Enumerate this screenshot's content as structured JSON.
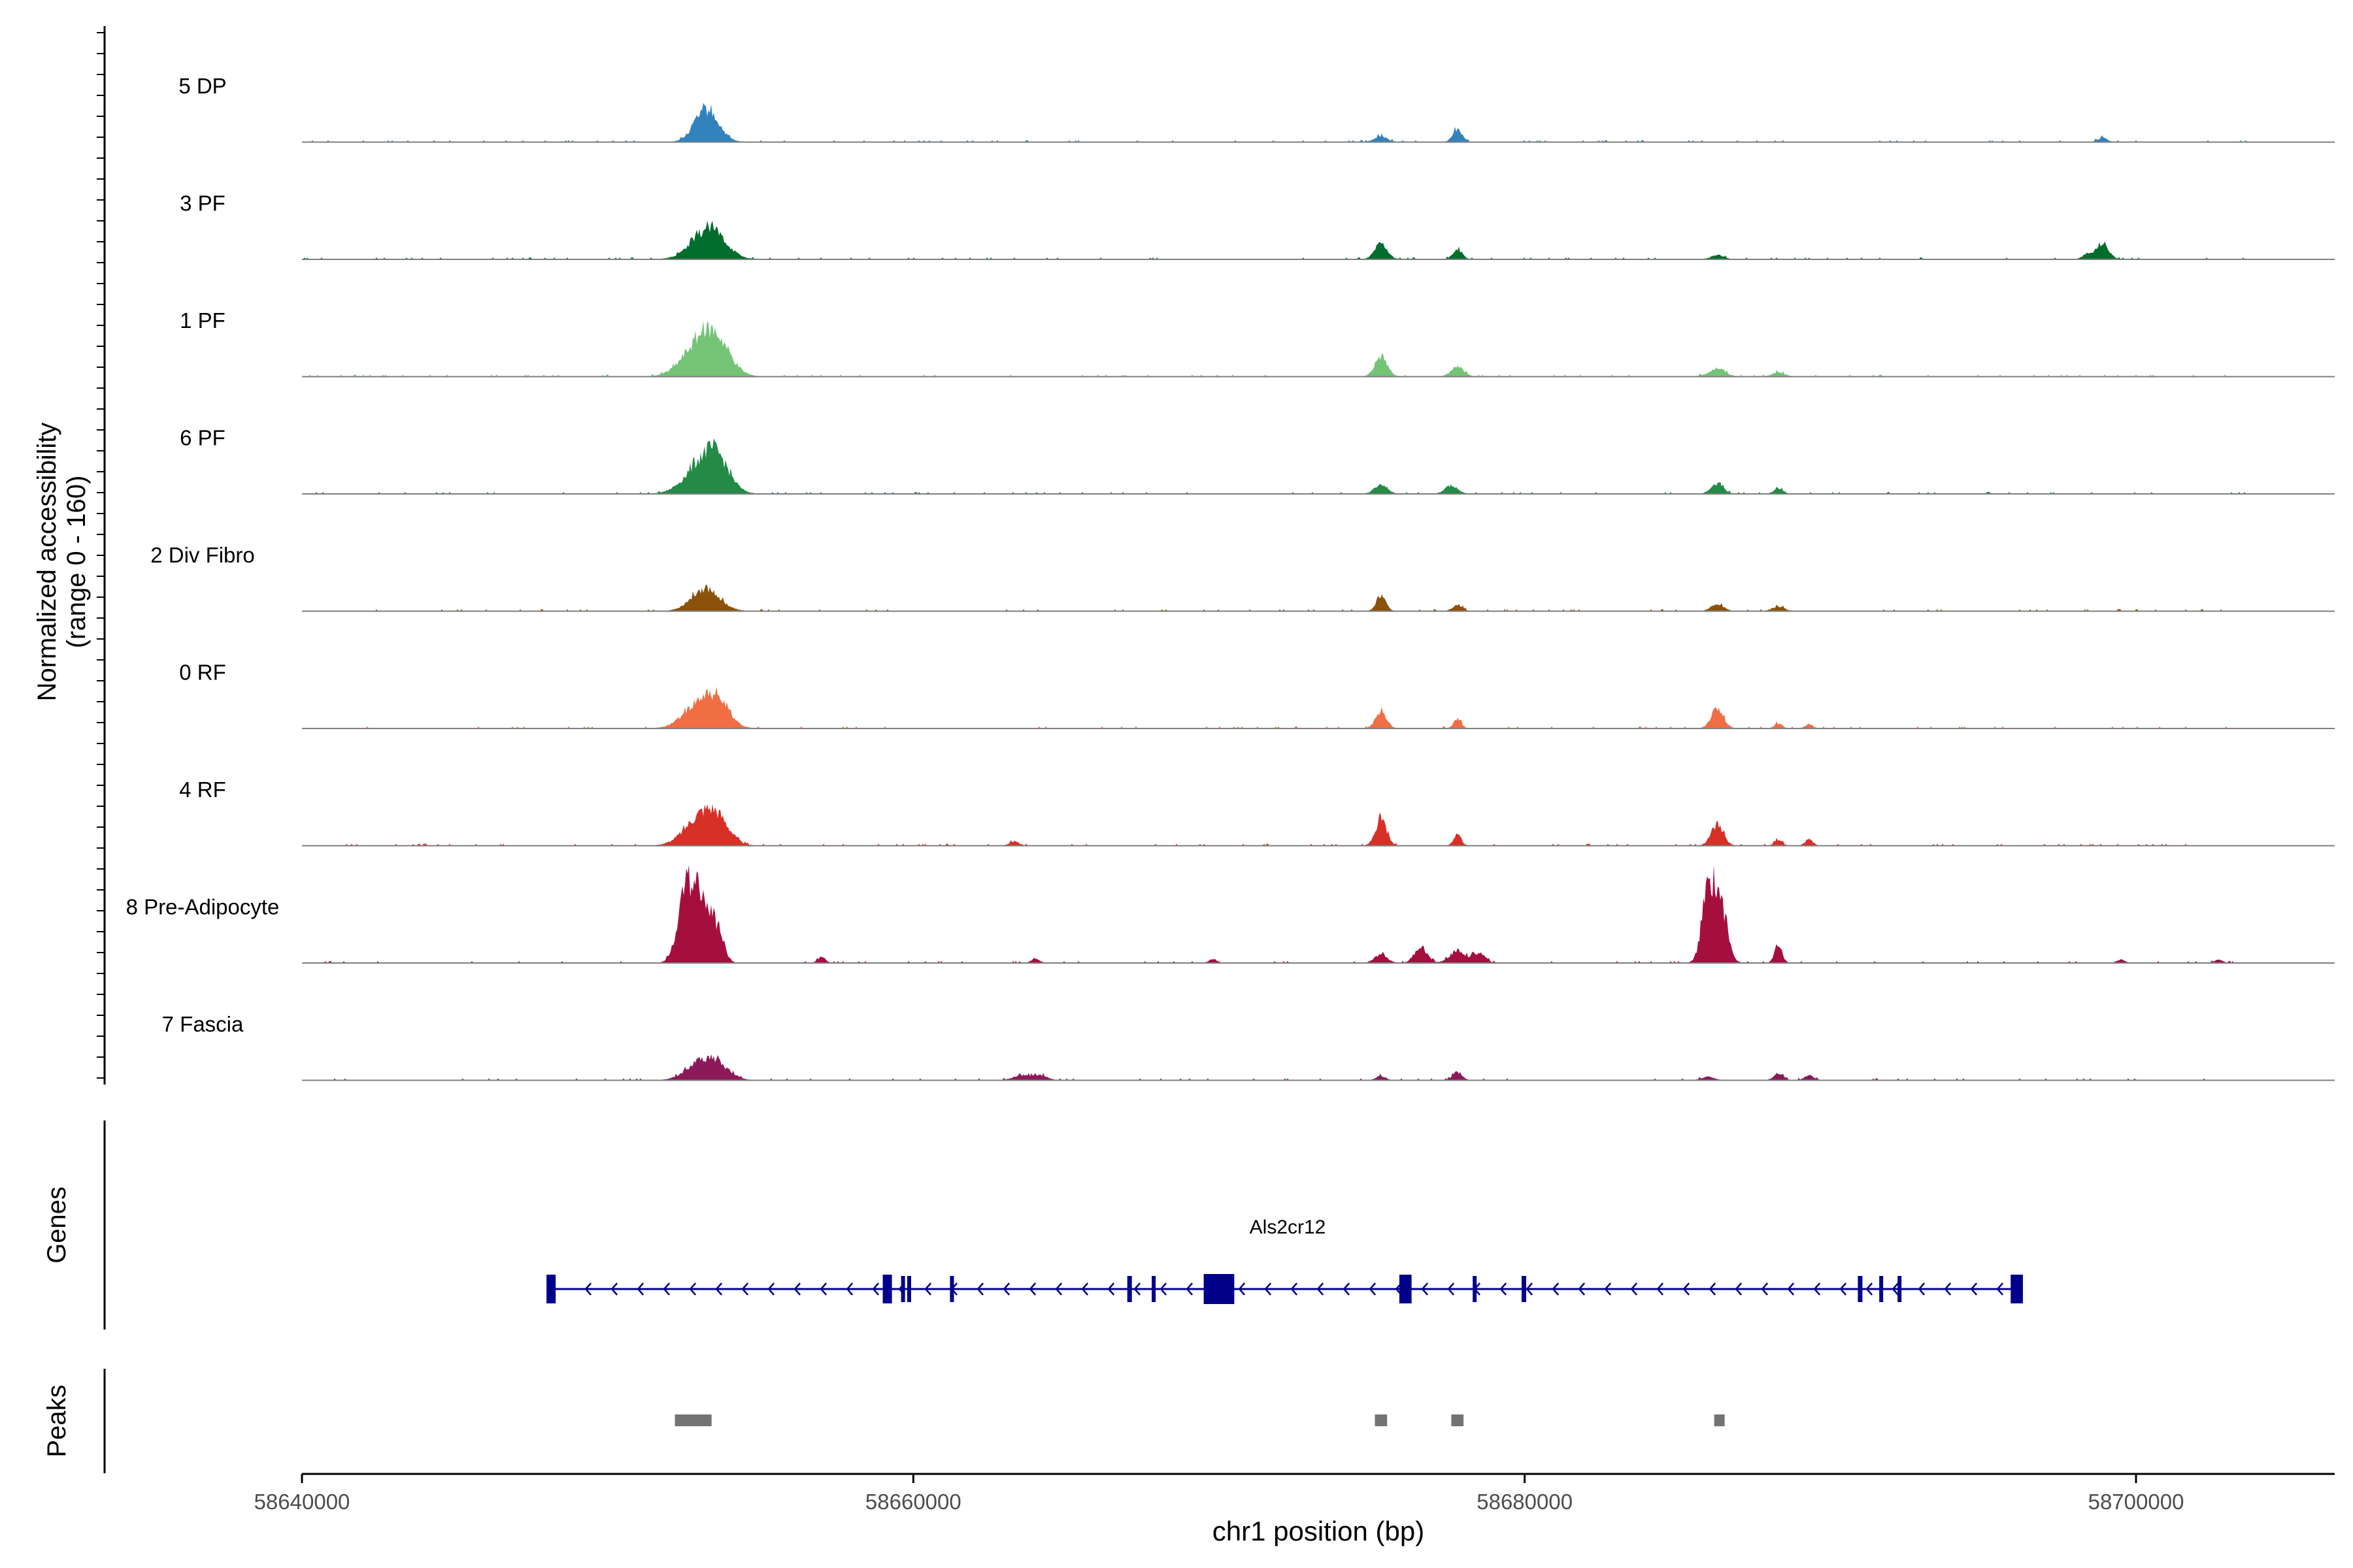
{
  "chart_data": {
    "type": "area",
    "region": {
      "chromosome": "chr1",
      "start": 58640000,
      "end": 58706500
    },
    "y_axis_label": [
      "Normalized accessibility",
      "(range 0 - 160)"
    ],
    "y_range": [
      0,
      160
    ],
    "x_axis": {
      "label": "chr1 position (bp)",
      "ticks": [
        58640000,
        58660000,
        58680000,
        58700000
      ],
      "tick_labels": [
        "58640000",
        "58660000",
        "58680000",
        "58700000"
      ]
    },
    "tracks": [
      {
        "name": "5 DP",
        "color": "#3182bd",
        "peaks": [
          [
            58653100,
            0.24,
            350
          ],
          [
            58653400,
            0.2,
            350
          ],
          [
            58675300,
            0.07,
            200
          ],
          [
            58677800,
            0.16,
            150
          ],
          [
            58698900,
            0.05,
            150
          ]
        ]
      },
      {
        "name": "3 PF",
        "color": "#006d2c",
        "peaks": [
          [
            58653100,
            0.2,
            500
          ],
          [
            58653500,
            0.22,
            450
          ],
          [
            58675300,
            0.2,
            200
          ],
          [
            58677800,
            0.12,
            150
          ],
          [
            58686300,
            0.05,
            200
          ],
          [
            58698900,
            0.2,
            200
          ],
          [
            58698400,
            0.06,
            150
          ]
        ]
      },
      {
        "name": "1 PF",
        "color": "#74c476",
        "peaks": [
          [
            58653000,
            0.38,
            550
          ],
          [
            58653600,
            0.32,
            450
          ],
          [
            58675300,
            0.25,
            200
          ],
          [
            58677800,
            0.12,
            200
          ],
          [
            58686300,
            0.1,
            250
          ],
          [
            58688300,
            0.05,
            200
          ]
        ]
      },
      {
        "name": "6 PF",
        "color": "#238b45",
        "peaks": [
          [
            58653100,
            0.36,
            550
          ],
          [
            58653600,
            0.28,
            400
          ],
          [
            58675300,
            0.12,
            200
          ],
          [
            58677600,
            0.1,
            200
          ],
          [
            58686300,
            0.12,
            200
          ],
          [
            58688300,
            0.06,
            150
          ]
        ]
      },
      {
        "name": "2 Div Fibro",
        "color": "#8c510a",
        "peaks": [
          [
            58653200,
            0.28,
            450
          ],
          [
            58675300,
            0.2,
            150
          ],
          [
            58677800,
            0.08,
            150
          ],
          [
            58686300,
            0.08,
            200
          ],
          [
            58688300,
            0.05,
            200
          ]
        ]
      },
      {
        "name": "0 RF",
        "color": "#f16d43",
        "peaks": [
          [
            58653000,
            0.3,
            500
          ],
          [
            58653600,
            0.25,
            400
          ],
          [
            58675300,
            0.2,
            180
          ],
          [
            58677800,
            0.12,
            120
          ],
          [
            58686300,
            0.24,
            200
          ],
          [
            58688300,
            0.06,
            120
          ],
          [
            58689300,
            0.05,
            120
          ]
        ]
      },
      {
        "name": "4 RF",
        "color": "#d73027",
        "peaks": [
          [
            58653000,
            0.32,
            500
          ],
          [
            58653600,
            0.26,
            400
          ],
          [
            58675300,
            0.32,
            180
          ],
          [
            58677800,
            0.15,
            120
          ],
          [
            58686300,
            0.26,
            200
          ],
          [
            58688300,
            0.07,
            120
          ],
          [
            58689300,
            0.08,
            120
          ],
          [
            58663300,
            0.05,
            150
          ]
        ]
      },
      {
        "name": "8 Pre-Adipocyte",
        "color": "#a50f3e",
        "peaks": [
          [
            58652500,
            0.7,
            250
          ],
          [
            58653000,
            0.9,
            280
          ],
          [
            58653600,
            0.4,
            200
          ],
          [
            58675300,
            0.1,
            200
          ],
          [
            58676600,
            0.2,
            200
          ],
          [
            58677800,
            0.15,
            250
          ],
          [
            58678500,
            0.12,
            200
          ],
          [
            58686000,
            0.85,
            200
          ],
          [
            58686400,
            0.72,
            220
          ],
          [
            58688300,
            0.22,
            120
          ],
          [
            58657000,
            0.07,
            120
          ],
          [
            58664000,
            0.06,
            120
          ],
          [
            58669800,
            0.05,
            120
          ],
          [
            58699500,
            0.04,
            120
          ],
          [
            58702700,
            0.04,
            120
          ]
        ]
      },
      {
        "name": "7 Fascia",
        "color": "#8c1a5b",
        "peaks": [
          [
            58653000,
            0.2,
            450
          ],
          [
            58653600,
            0.16,
            400
          ],
          [
            58663600,
            0.06,
            300
          ],
          [
            58664200,
            0.05,
            200
          ],
          [
            58675300,
            0.05,
            150
          ],
          [
            58677800,
            0.1,
            150
          ],
          [
            58688300,
            0.08,
            150
          ],
          [
            58689300,
            0.06,
            150
          ],
          [
            58686000,
            0.04,
            200
          ]
        ]
      }
    ],
    "genes_label": "Genes",
    "gene": {
      "name": "Als2cr12",
      "start": 58648000,
      "end": 58696300,
      "strand": "-",
      "exons": [
        [
          58648000,
          58648300
        ],
        [
          58659000,
          58659300
        ],
        [
          58659600,
          58659700
        ],
        [
          58659800,
          58659900
        ],
        [
          58661200,
          58661300
        ],
        [
          58667000,
          58667150
        ],
        [
          58667800,
          58667900
        ],
        [
          58669500,
          58670500
        ],
        [
          58675900,
          58676300
        ],
        [
          58678300,
          58678400
        ],
        [
          58679900,
          58680050
        ],
        [
          58690900,
          58691050
        ],
        [
          58691600,
          58691700
        ],
        [
          58692200,
          58692300
        ],
        [
          58695900,
          58696300
        ]
      ]
    },
    "peaks_label": "Peaks",
    "peak_regions": [
      [
        58652200,
        58653400
      ],
      [
        58675100,
        58675500
      ],
      [
        58677600,
        58678000
      ],
      [
        58686200,
        58686500
      ]
    ]
  }
}
